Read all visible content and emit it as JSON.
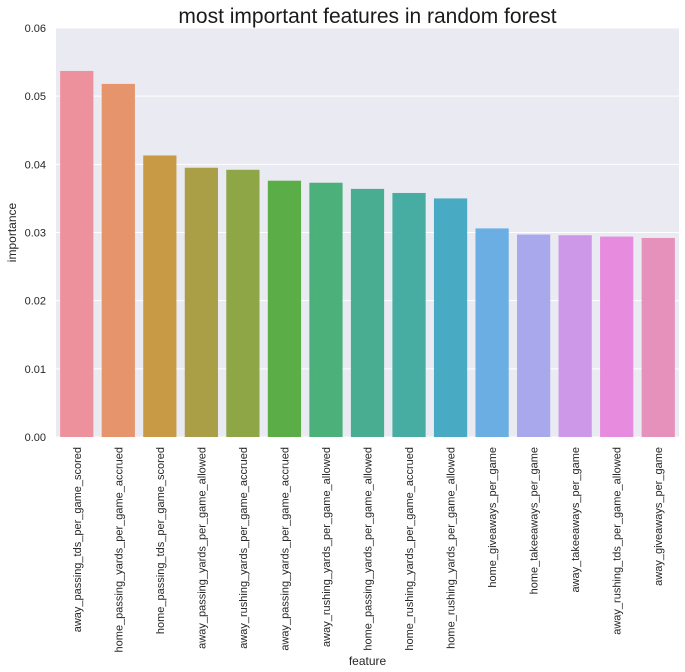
{
  "chart_data": {
    "type": "bar",
    "title": "most important features in random forest",
    "xlabel": "feature",
    "ylabel": "importance",
    "ylim": [
      0,
      0.06
    ],
    "yticks": [
      0.0,
      0.01,
      0.02,
      0.03,
      0.04,
      0.05,
      0.06
    ],
    "ytick_labels": [
      "0.00",
      "0.01",
      "0.02",
      "0.03",
      "0.04",
      "0.05",
      "0.06"
    ],
    "grid": true,
    "background_color": "#eaeaf2",
    "grid_color": "#ffffff",
    "categories": [
      "away_passing_tds_per_game_scored",
      "home_passing_yards_per_game_accrued",
      "home_passing_tds_per_game_scored",
      "away_passing_yards_per_game_allowed",
      "away_rushing_yards_per_game_accrued",
      "away_passing_yards_per_game_accrued",
      "away_rushing_yards_per_game_allowed",
      "home_passing_yards_per_game_allowed",
      "home_rushing_yards_per_game_accrued",
      "home_rushing_yards_per_game_allowed",
      "home_giveaways_per_game",
      "home_takeeaways_per_game",
      "away_takeeaways_per_game",
      "away_rushing_tds_per_game_allowed",
      "away_giveaways_per_game"
    ],
    "values": [
      0.0537,
      0.0518,
      0.0413,
      0.0395,
      0.0392,
      0.0376,
      0.0373,
      0.0364,
      0.0358,
      0.035,
      0.0306,
      0.0297,
      0.0296,
      0.0294,
      0.0292
    ],
    "colors": [
      "#ed919c",
      "#e5946b",
      "#c99a45",
      "#aa9e47",
      "#8ea645",
      "#5bad47",
      "#4cb07a",
      "#49ae91",
      "#47aca1",
      "#49aac3",
      "#6aaee3",
      "#aaa8ed",
      "#ce98e8",
      "#e68bdd",
      "#e690bc"
    ]
  }
}
